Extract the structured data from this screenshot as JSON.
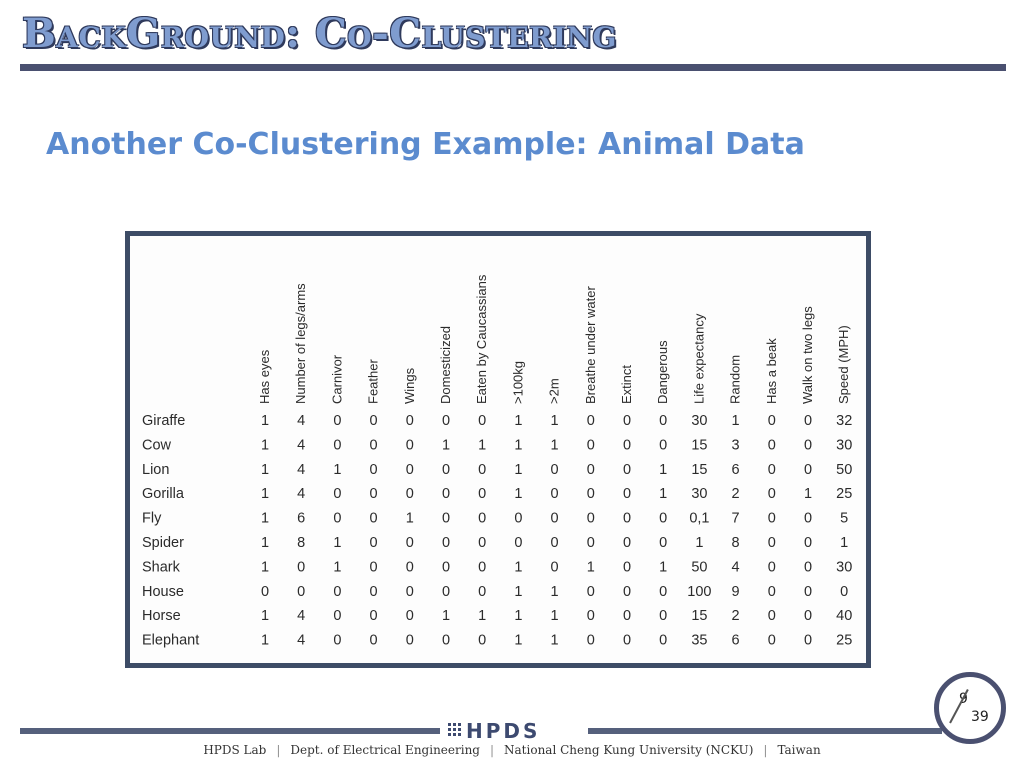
{
  "header": {
    "title": "BackGround: Co-Clustering"
  },
  "subtitle": "Another Co-Clustering Example: Animal Data",
  "table": {
    "columns": [
      "Has eyes",
      "Number of legs/arms",
      "Carnivor",
      "Feather",
      "Wings",
      "Domesticized",
      "Eaten by Caucassians",
      ">100kg",
      ">2m",
      "Breathe under water",
      "Extinct",
      "Dangerous",
      "Life expectancy",
      "Random",
      "Has a beak",
      "Walk on two legs",
      "Speed (MPH)"
    ],
    "rows": [
      {
        "name": "Giraffe",
        "values": [
          "1",
          "4",
          "0",
          "0",
          "0",
          "0",
          "0",
          "1",
          "1",
          "0",
          "0",
          "0",
          "30",
          "1",
          "0",
          "0",
          "32"
        ]
      },
      {
        "name": "Cow",
        "values": [
          "1",
          "4",
          "0",
          "0",
          "0",
          "1",
          "1",
          "1",
          "1",
          "0",
          "0",
          "0",
          "15",
          "3",
          "0",
          "0",
          "30"
        ]
      },
      {
        "name": "Lion",
        "values": [
          "1",
          "4",
          "1",
          "0",
          "0",
          "0",
          "0",
          "1",
          "0",
          "0",
          "0",
          "1",
          "15",
          "6",
          "0",
          "0",
          "50"
        ]
      },
      {
        "name": "Gorilla",
        "values": [
          "1",
          "4",
          "0",
          "0",
          "0",
          "0",
          "0",
          "1",
          "0",
          "0",
          "0",
          "1",
          "30",
          "2",
          "0",
          "1",
          "25"
        ]
      },
      {
        "name": "Fly",
        "values": [
          "1",
          "6",
          "0",
          "0",
          "1",
          "0",
          "0",
          "0",
          "0",
          "0",
          "0",
          "0",
          "0,1",
          "7",
          "0",
          "0",
          "5"
        ]
      },
      {
        "name": "Spider",
        "values": [
          "1",
          "8",
          "1",
          "0",
          "0",
          "0",
          "0",
          "0",
          "0",
          "0",
          "0",
          "0",
          "1",
          "8",
          "0",
          "0",
          "1"
        ]
      },
      {
        "name": "Shark",
        "values": [
          "1",
          "0",
          "1",
          "0",
          "0",
          "0",
          "0",
          "1",
          "0",
          "1",
          "0",
          "1",
          "50",
          "4",
          "0",
          "0",
          "30"
        ]
      },
      {
        "name": "House",
        "values": [
          "0",
          "0",
          "0",
          "0",
          "0",
          "0",
          "0",
          "1",
          "1",
          "0",
          "0",
          "0",
          "100",
          "9",
          "0",
          "0",
          "0"
        ]
      },
      {
        "name": "Horse",
        "values": [
          "1",
          "4",
          "0",
          "0",
          "0",
          "1",
          "1",
          "1",
          "1",
          "0",
          "0",
          "0",
          "15",
          "2",
          "0",
          "0",
          "40"
        ]
      },
      {
        "name": "Elephant",
        "values": [
          "1",
          "4",
          "0",
          "0",
          "0",
          "0",
          "0",
          "1",
          "1",
          "0",
          "0",
          "0",
          "35",
          "6",
          "0",
          "0",
          "25"
        ]
      }
    ]
  },
  "footer": {
    "logo": "HPDS",
    "items": [
      "HPDS Lab",
      "Dept. of Electrical Engineering",
      "National Cheng Kung University (NCKU)",
      "Taiwan"
    ]
  },
  "page": {
    "current": "9",
    "total": "39"
  }
}
